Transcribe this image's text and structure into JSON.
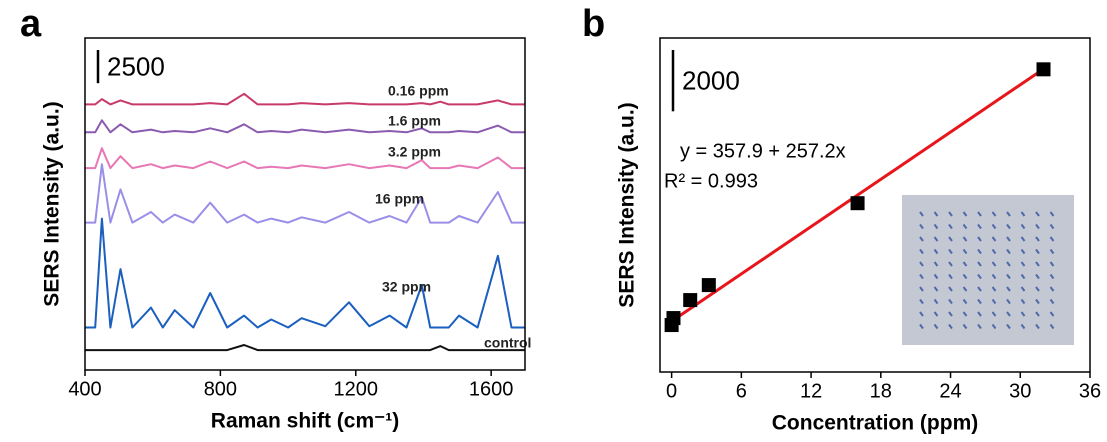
{
  "chart_data": [
    {
      "type": "line",
      "panel": "a",
      "xlabel": "Raman shift (cm⁻¹)",
      "ylabel": "SERS Intensity (a.u.)",
      "scale_bar": 2500,
      "x": [
        400,
        430,
        450,
        475,
        505,
        540,
        595,
        630,
        665,
        720,
        770,
        820,
        870,
        910,
        950,
        1000,
        1040,
        1110,
        1180,
        1240,
        1300,
        1350,
        1395,
        1420,
        1450,
        1475,
        1505,
        1560,
        1620,
        1660,
        1700
      ],
      "xlim": [
        400,
        1700
      ],
      "xticks": [
        400,
        800,
        1200,
        1600
      ],
      "ylim": [
        0,
        25000
      ],
      "series": [
        {
          "name": "0.16 ppm",
          "color": "#c83a6a",
          "values": [
            20000,
            20000,
            20400,
            20000,
            20300,
            20000,
            20000,
            20000,
            20000,
            20000,
            20100,
            20000,
            20800,
            20000,
            20000,
            20000,
            20100,
            20000,
            20100,
            20000,
            20000,
            20000,
            20100,
            20000,
            20200,
            20000,
            20000,
            20000,
            20300,
            20000,
            20000
          ]
        },
        {
          "name": "1.6 ppm",
          "color": "#8a5bb0",
          "values": [
            17900,
            17900,
            18800,
            17900,
            18500,
            17900,
            18100,
            17900,
            18000,
            17900,
            18200,
            17900,
            18500,
            17900,
            18000,
            17900,
            18100,
            17900,
            18100,
            17900,
            18000,
            17900,
            18200,
            17900,
            17900,
            17900,
            18000,
            17900,
            18400,
            17900,
            17900
          ]
        },
        {
          "name": "3.2 ppm",
          "color": "#e877b5",
          "values": [
            15200,
            15200,
            16700,
            15200,
            16100,
            15200,
            15500,
            15200,
            15400,
            15200,
            15700,
            15200,
            15700,
            15200,
            15300,
            15200,
            15400,
            15200,
            15500,
            15200,
            15400,
            15200,
            15800,
            15200,
            15200,
            15200,
            15400,
            15200,
            16000,
            15200,
            15200
          ]
        },
        {
          "name": "16 ppm",
          "color": "#9a8fe8",
          "values": [
            11100,
            11100,
            15500,
            11100,
            13600,
            11100,
            11900,
            11100,
            11700,
            11100,
            12600,
            11100,
            11700,
            11100,
            11400,
            11100,
            11500,
            11100,
            11900,
            11100,
            11600,
            11100,
            13000,
            11100,
            11100,
            11100,
            11600,
            11100,
            13400,
            11100,
            11100
          ]
        },
        {
          "name": "32 ppm",
          "color": "#1b5fbf",
          "values": [
            3200,
            3200,
            11400,
            3200,
            7600,
            3200,
            4700,
            3200,
            4500,
            3200,
            5800,
            3200,
            4100,
            3200,
            3800,
            3200,
            3900,
            3300,
            5100,
            3300,
            4100,
            3200,
            6400,
            3200,
            3200,
            3200,
            4100,
            3200,
            8600,
            3200,
            3200
          ]
        },
        {
          "name": "control",
          "color": "#111111",
          "values": [
            1500,
            1500,
            1500,
            1500,
            1500,
            1500,
            1500,
            1500,
            1500,
            1500,
            1500,
            1500,
            1880,
            1500,
            1500,
            1500,
            1500,
            1500,
            1500,
            1500,
            1500,
            1500,
            1500,
            1500,
            1800,
            1500,
            1500,
            1500,
            1500,
            1500,
            1500
          ]
        }
      ]
    },
    {
      "type": "scatter",
      "panel": "b",
      "xlabel": "Concentration (ppm)",
      "ylabel": "SERS Intensity (a.u.)",
      "scale_bar": 2000,
      "x": [
        0,
        0.16,
        1.6,
        3.2,
        16,
        32
      ],
      "y": [
        232,
        460,
        1047,
        1536,
        4209,
        8578
      ],
      "color": "#000000",
      "fit_color": "#e8151b",
      "fit": {
        "intercept": 357.9,
        "slope": 257.2
      },
      "equation": "y = 357.9 + 257.2x",
      "r2_label": "R² = 0.993",
      "xlim": [
        -1,
        36
      ],
      "xticks": [
        0,
        6,
        12,
        18,
        24,
        30,
        36
      ],
      "ylim": [
        -1300,
        9600
      ]
    }
  ]
}
